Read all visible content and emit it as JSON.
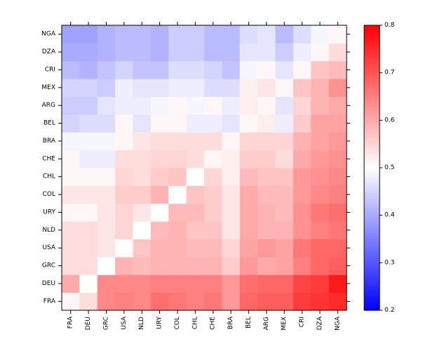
{
  "chart_data": {
    "type": "heatmap",
    "x_labels": [
      "FRA",
      "DEU",
      "GRC",
      "USA",
      "NLD",
      "URY",
      "COL",
      "CHL",
      "CHE",
      "BRA",
      "BEL",
      "ARG",
      "MEX",
      "CRI",
      "DZA",
      "NGA"
    ],
    "y_labels": [
      "FRA",
      "DEU",
      "GRC",
      "USA",
      "NLD",
      "URY",
      "COL",
      "CHL",
      "CHE",
      "BRA",
      "BEL",
      "ARG",
      "MEX",
      "CRI",
      "DZA",
      "NGA"
    ],
    "values": [
      [
        0.51,
        0.54,
        0.64,
        0.65,
        0.64,
        0.67,
        0.66,
        0.65,
        0.66,
        0.62,
        0.68,
        0.69,
        0.69,
        0.73,
        0.74,
        0.75
      ],
      [
        0.6,
        0.5,
        0.64,
        0.64,
        0.64,
        0.65,
        0.65,
        0.65,
        0.65,
        0.62,
        0.67,
        0.68,
        0.68,
        0.72,
        0.73,
        0.77
      ],
      [
        0.54,
        0.54,
        0.5,
        0.59,
        0.58,
        0.59,
        0.59,
        0.59,
        0.59,
        0.56,
        0.62,
        0.6,
        0.61,
        0.65,
        0.68,
        0.69
      ],
      [
        0.54,
        0.54,
        0.53,
        0.5,
        0.57,
        0.59,
        0.59,
        0.58,
        0.58,
        0.55,
        0.61,
        0.62,
        0.61,
        0.66,
        0.68,
        0.68
      ],
      [
        0.54,
        0.54,
        0.53,
        0.55,
        0.5,
        0.58,
        0.59,
        0.57,
        0.57,
        0.53,
        0.6,
        0.59,
        0.59,
        0.63,
        0.65,
        0.66
      ],
      [
        0.51,
        0.51,
        0.53,
        0.55,
        0.53,
        0.5,
        0.58,
        0.58,
        0.56,
        0.53,
        0.6,
        0.59,
        0.58,
        0.63,
        0.66,
        0.67
      ],
      [
        0.53,
        0.53,
        0.53,
        0.56,
        0.56,
        0.59,
        0.5,
        0.57,
        0.56,
        0.53,
        0.6,
        0.58,
        0.58,
        0.62,
        0.64,
        0.65
      ],
      [
        0.51,
        0.51,
        0.51,
        0.55,
        0.54,
        0.56,
        0.57,
        0.5,
        0.55,
        0.52,
        0.58,
        0.57,
        0.57,
        0.62,
        0.63,
        0.64
      ],
      [
        0.51,
        0.48,
        0.48,
        0.54,
        0.54,
        0.55,
        0.55,
        0.54,
        0.51,
        0.52,
        0.56,
        0.56,
        0.54,
        0.6,
        0.62,
        0.63
      ],
      [
        0.49,
        0.49,
        0.49,
        0.51,
        0.53,
        0.54,
        0.54,
        0.54,
        0.54,
        0.51,
        0.55,
        0.55,
        0.55,
        0.59,
        0.61,
        0.62
      ],
      [
        0.45,
        0.46,
        0.46,
        0.51,
        0.47,
        0.51,
        0.51,
        0.48,
        0.48,
        0.47,
        0.51,
        0.52,
        0.48,
        0.56,
        0.61,
        0.61
      ],
      [
        0.44,
        0.44,
        0.47,
        0.48,
        0.48,
        0.49,
        0.51,
        0.49,
        0.51,
        0.48,
        0.52,
        0.51,
        0.47,
        0.55,
        0.59,
        0.6
      ],
      [
        0.45,
        0.45,
        0.44,
        0.48,
        0.47,
        0.47,
        0.48,
        0.48,
        0.46,
        0.46,
        0.52,
        0.53,
        0.51,
        0.57,
        0.59,
        0.63
      ],
      [
        0.42,
        0.41,
        0.43,
        0.45,
        0.43,
        0.43,
        0.46,
        0.46,
        0.45,
        0.43,
        0.49,
        0.51,
        0.47,
        0.51,
        0.57,
        0.58
      ],
      [
        0.4,
        0.4,
        0.41,
        0.42,
        0.42,
        0.41,
        0.44,
        0.44,
        0.42,
        0.42,
        0.47,
        0.47,
        0.44,
        0.48,
        0.51,
        0.54
      ],
      [
        0.39,
        0.39,
        0.41,
        0.42,
        0.42,
        0.41,
        0.44,
        0.44,
        0.42,
        0.42,
        0.46,
        0.47,
        0.42,
        0.46,
        0.49,
        0.51
      ]
    ],
    "colorbar": {
      "min": 0.2,
      "max": 0.8,
      "ticks": [
        "0.2",
        "0.3",
        "0.4",
        "0.5",
        "0.6",
        "0.7",
        "0.8"
      ]
    },
    "colors": {
      "low": "#0000ff",
      "mid": "#ffffff",
      "high": "#ff0000"
    },
    "title": "",
    "xlabel": "",
    "ylabel": ""
  }
}
